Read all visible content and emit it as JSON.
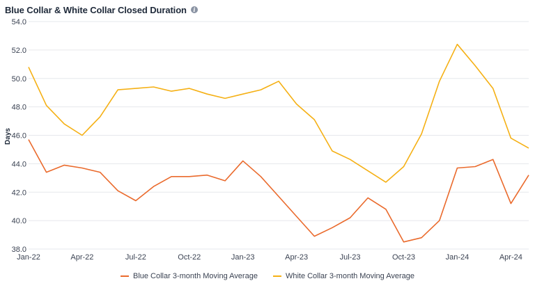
{
  "title": "Blue Collar & White Collar Closed Duration",
  "colors": {
    "blue": "#ea6a2c",
    "white": "#f5b014",
    "grid": "#e6e8ec"
  },
  "chart_data": {
    "type": "line",
    "title": "Blue Collar & White Collar Closed Duration",
    "xlabel": "",
    "ylabel": "Days",
    "ylim": [
      38.0,
      54.0
    ],
    "yticks": [
      "38.0",
      "40.0",
      "42.0",
      "44.0",
      "46.0",
      "48.0",
      "50.0",
      "52.0",
      "54.0"
    ],
    "grid": true,
    "legend_position": "bottom",
    "x": [
      "Jan-22",
      "Feb-22",
      "Mar-22",
      "Apr-22",
      "May-22",
      "Jun-22",
      "Jul-22",
      "Aug-22",
      "Sep-22",
      "Oct-22",
      "Nov-22",
      "Dec-22",
      "Jan-23",
      "Feb-23",
      "Mar-23",
      "Apr-23",
      "May-23",
      "Jun-23",
      "Jul-23",
      "Aug-23",
      "Sep-23",
      "Oct-23",
      "Nov-23",
      "Dec-23",
      "Jan-24",
      "Feb-24",
      "Mar-24",
      "Apr-24",
      "May-24"
    ],
    "xtick_labels": [
      "Jan-22",
      "Apr-22",
      "Jul-22",
      "Oct-22",
      "Jan-23",
      "Apr-23",
      "Jul-23",
      "Oct-23",
      "Jan-24",
      "Apr-24"
    ],
    "series": [
      {
        "name": "Blue Collar 3-month Moving Average",
        "values": [
          45.7,
          43.4,
          43.9,
          43.7,
          43.4,
          42.1,
          41.4,
          42.4,
          43.1,
          43.1,
          43.2,
          42.8,
          44.2,
          43.1,
          41.7,
          40.3,
          38.9,
          39.5,
          40.2,
          41.6,
          40.8,
          38.5,
          38.8,
          40.0,
          43.7,
          43.8,
          44.3,
          41.2,
          43.2
        ]
      },
      {
        "name": "White Collar 3-month Moving Average",
        "values": [
          50.8,
          48.1,
          46.8,
          46.0,
          47.3,
          49.2,
          49.3,
          49.4,
          49.1,
          49.3,
          48.9,
          48.6,
          48.9,
          49.2,
          49.8,
          48.2,
          47.1,
          44.9,
          44.3,
          43.5,
          42.7,
          43.8,
          46.1,
          49.8,
          52.4,
          50.9,
          49.3,
          45.8,
          45.1
        ]
      }
    ]
  }
}
